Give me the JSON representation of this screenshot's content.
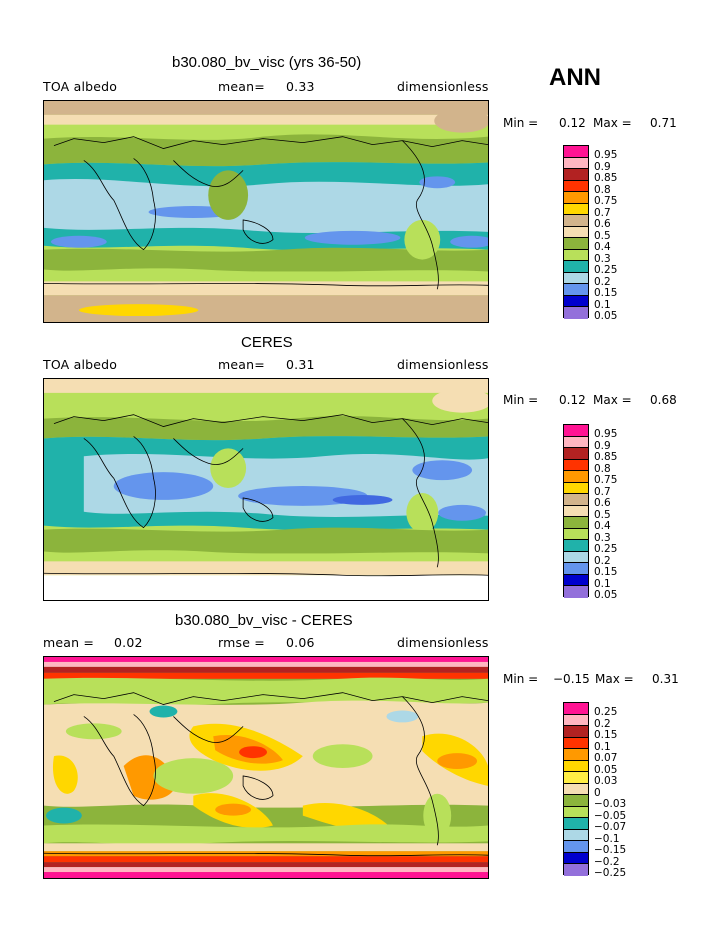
{
  "season": "ANN",
  "colors": {
    "pink_hot": "#ff1493",
    "pink_light": "#ffb6c1",
    "red_dark": "#b22222",
    "red": "#ff3300",
    "orange": "#ff9900",
    "gold": "#ffd700",
    "yellow": "#ffee44",
    "tan": "#d2b48c",
    "cream": "#f5deb3",
    "olive": "#8cb43c",
    "lightgreen": "#b8e05a",
    "teal": "#20b2aa",
    "lightblue": "#add8e6",
    "cornflower": "#6495ed",
    "royal": "#4169e1",
    "navy": "#0000cd",
    "lavender": "#9370db"
  },
  "panels": [
    {
      "title": "b30.080_bv_visc (yrs 36-50)",
      "left_header": "TOA albedo",
      "center_header_label": "mean=",
      "center_header_value": "0.33",
      "right_header": "dimensionless",
      "min_label": "Min =",
      "min_value": "0.12",
      "max_label": "Max =",
      "max_value": "0.71",
      "legend_labels": [
        "0.95",
        "0.9",
        "0.85",
        "0.8",
        "0.75",
        "0.7",
        "0.6",
        "0.5",
        "0.4",
        "0.3",
        "0.25",
        "0.2",
        "0.15",
        "0.1",
        "0.05"
      ]
    },
    {
      "title": "CERES",
      "left_header": "TOA albedo",
      "center_header_label": "mean=",
      "center_header_value": "0.31",
      "right_header": "dimensionless",
      "min_label": "Min =",
      "min_value": "0.12",
      "max_label": "Max =",
      "max_value": "0.68",
      "legend_labels": [
        "0.95",
        "0.9",
        "0.85",
        "0.8",
        "0.75",
        "0.7",
        "0.6",
        "0.5",
        "0.4",
        "0.3",
        "0.25",
        "0.2",
        "0.15",
        "0.1",
        "0.05"
      ]
    },
    {
      "title": "b30.080_bv_visc - CERES",
      "left_header_label": "mean =",
      "left_header_value": "0.02",
      "center_header_label": "rmse =",
      "center_header_value": "0.06",
      "right_header": "dimensionless",
      "min_label": "Min =",
      "min_value": "−0.15",
      "max_label": "Max =",
      "max_value": "0.31",
      "legend_labels": [
        "0.25",
        "0.2",
        "0.15",
        "0.1",
        "0.07",
        "0.05",
        "0.03",
        "0",
        "−0.03",
        "−0.05",
        "−0.07",
        "−0.1",
        "−0.15",
        "−0.2",
        "−0.25"
      ]
    }
  ]
}
